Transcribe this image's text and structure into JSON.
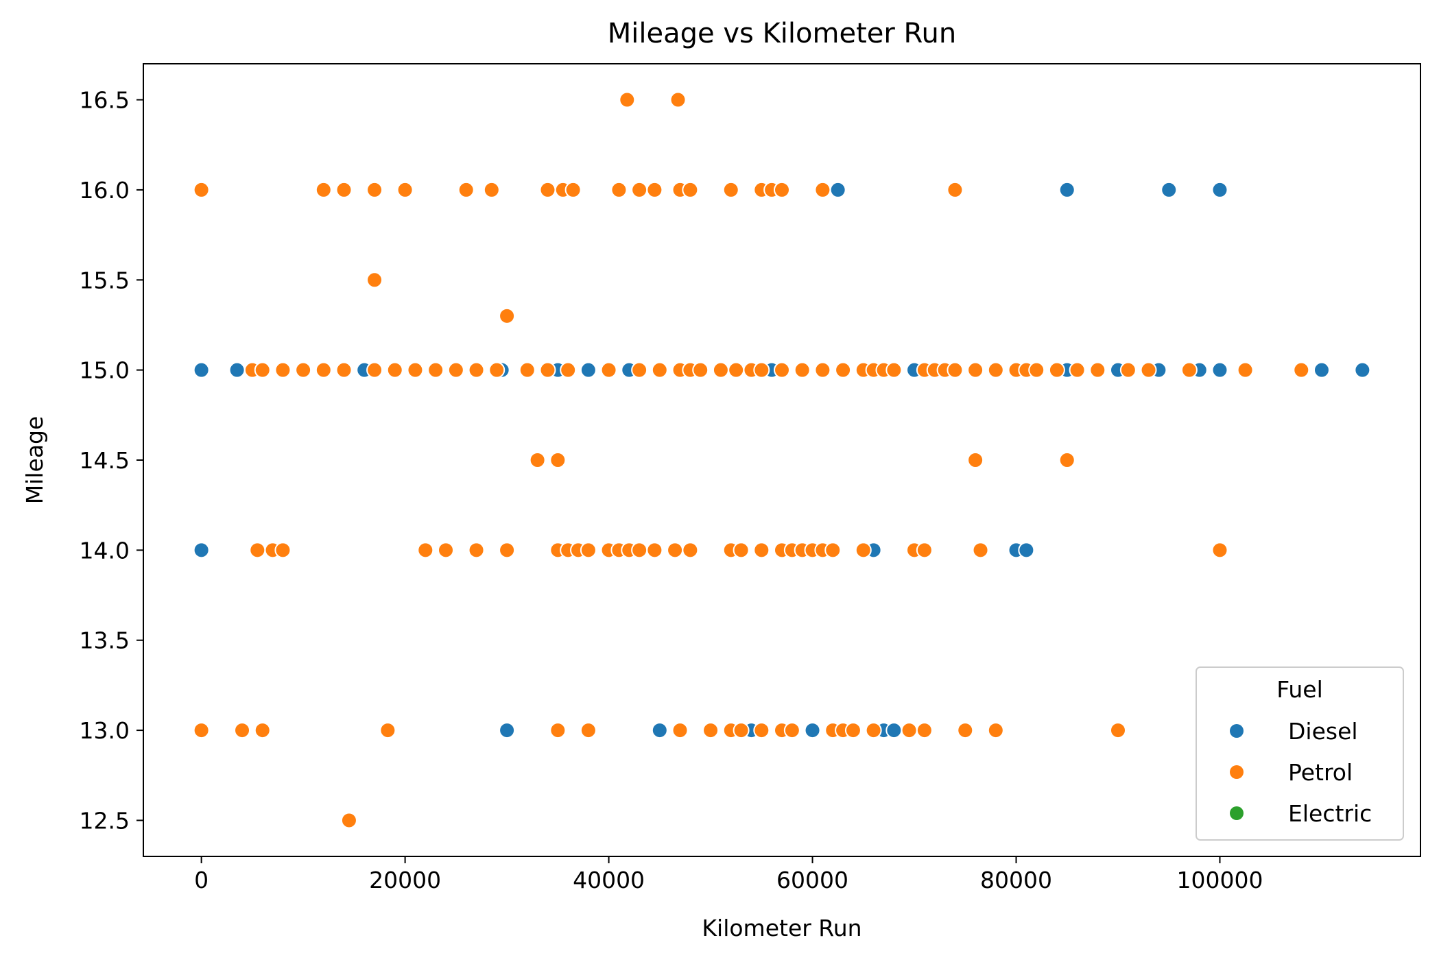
{
  "chart_data": {
    "type": "scatter",
    "title": "Mileage vs Kilometer Run",
    "xlabel": "Kilometer Run",
    "ylabel": "Mileage",
    "xlim": [
      -5700,
      119700
    ],
    "ylim": [
      12.3,
      16.7
    ],
    "x_ticks": [
      0,
      20000,
      40000,
      60000,
      80000,
      100000
    ],
    "y_ticks": [
      12.5,
      13.0,
      13.5,
      14.0,
      14.5,
      15.0,
      15.5,
      16.0,
      16.5
    ],
    "grid": false,
    "legend": {
      "title": "Fuel",
      "placement": "lower right",
      "entries": [
        "Diesel",
        "Petrol",
        "Electric"
      ]
    },
    "series": [
      {
        "name": "Diesel",
        "color": "#1f77b4",
        "points": [
          [
            0,
            15.0
          ],
          [
            3500,
            15.0
          ],
          [
            16000,
            15.0
          ],
          [
            29500,
            15.0
          ],
          [
            35000,
            15.0
          ],
          [
            38000,
            15.0
          ],
          [
            42000,
            15.0
          ],
          [
            56000,
            15.0
          ],
          [
            70000,
            15.0
          ],
          [
            85000,
            15.0
          ],
          [
            90000,
            15.0
          ],
          [
            94000,
            15.0
          ],
          [
            98000,
            15.0
          ],
          [
            100000,
            15.0
          ],
          [
            110000,
            15.0
          ],
          [
            114000,
            15.0
          ],
          [
            62500,
            16.0
          ],
          [
            85000,
            16.0
          ],
          [
            95000,
            16.0
          ],
          [
            100000,
            16.0
          ],
          [
            0,
            14.0
          ],
          [
            66000,
            14.0
          ],
          [
            80000,
            14.0
          ],
          [
            81000,
            14.0
          ],
          [
            30000,
            13.0
          ],
          [
            45000,
            13.0
          ],
          [
            54000,
            13.0
          ],
          [
            60000,
            13.0
          ],
          [
            67000,
            13.0
          ],
          [
            68000,
            13.0
          ]
        ]
      },
      {
        "name": "Petrol",
        "color": "#ff7f0e",
        "points": [
          [
            41800,
            16.5
          ],
          [
            46800,
            16.5
          ],
          [
            0,
            16.0
          ],
          [
            12000,
            16.0
          ],
          [
            14000,
            16.0
          ],
          [
            17000,
            16.0
          ],
          [
            20000,
            16.0
          ],
          [
            26000,
            16.0
          ],
          [
            28500,
            16.0
          ],
          [
            34000,
            16.0
          ],
          [
            35500,
            16.0
          ],
          [
            36500,
            16.0
          ],
          [
            41000,
            16.0
          ],
          [
            43000,
            16.0
          ],
          [
            44500,
            16.0
          ],
          [
            47000,
            16.0
          ],
          [
            48000,
            16.0
          ],
          [
            52000,
            16.0
          ],
          [
            55000,
            16.0
          ],
          [
            56000,
            16.0
          ],
          [
            57000,
            16.0
          ],
          [
            61000,
            16.0
          ],
          [
            74000,
            16.0
          ],
          [
            17000,
            15.5
          ],
          [
            30000,
            15.3
          ],
          [
            5000,
            15.0
          ],
          [
            6000,
            15.0
          ],
          [
            8000,
            15.0
          ],
          [
            10000,
            15.0
          ],
          [
            12000,
            15.0
          ],
          [
            14000,
            15.0
          ],
          [
            17000,
            15.0
          ],
          [
            19000,
            15.0
          ],
          [
            21000,
            15.0
          ],
          [
            23000,
            15.0
          ],
          [
            25000,
            15.0
          ],
          [
            27000,
            15.0
          ],
          [
            29000,
            15.0
          ],
          [
            32000,
            15.0
          ],
          [
            34000,
            15.0
          ],
          [
            36000,
            15.0
          ],
          [
            40000,
            15.0
          ],
          [
            43000,
            15.0
          ],
          [
            45000,
            15.0
          ],
          [
            47000,
            15.0
          ],
          [
            48000,
            15.0
          ],
          [
            49000,
            15.0
          ],
          [
            51000,
            15.0
          ],
          [
            52500,
            15.0
          ],
          [
            54000,
            15.0
          ],
          [
            55000,
            15.0
          ],
          [
            57000,
            15.0
          ],
          [
            59000,
            15.0
          ],
          [
            61000,
            15.0
          ],
          [
            63000,
            15.0
          ],
          [
            65000,
            15.0
          ],
          [
            66000,
            15.0
          ],
          [
            67000,
            15.0
          ],
          [
            68000,
            15.0
          ],
          [
            71000,
            15.0
          ],
          [
            72000,
            15.0
          ],
          [
            73000,
            15.0
          ],
          [
            74000,
            15.0
          ],
          [
            76000,
            15.0
          ],
          [
            78000,
            15.0
          ],
          [
            80000,
            15.0
          ],
          [
            81000,
            15.0
          ],
          [
            82000,
            15.0
          ],
          [
            84000,
            15.0
          ],
          [
            86000,
            15.0
          ],
          [
            88000,
            15.0
          ],
          [
            91000,
            15.0
          ],
          [
            93000,
            15.0
          ],
          [
            97000,
            15.0
          ],
          [
            102500,
            15.0
          ],
          [
            108000,
            15.0
          ],
          [
            33000,
            14.5
          ],
          [
            35000,
            14.5
          ],
          [
            76000,
            14.5
          ],
          [
            85000,
            14.5
          ],
          [
            5500,
            14.0
          ],
          [
            7000,
            14.0
          ],
          [
            8000,
            14.0
          ],
          [
            22000,
            14.0
          ],
          [
            24000,
            14.0
          ],
          [
            27000,
            14.0
          ],
          [
            30000,
            14.0
          ],
          [
            35000,
            14.0
          ],
          [
            36000,
            14.0
          ],
          [
            37000,
            14.0
          ],
          [
            38000,
            14.0
          ],
          [
            40000,
            14.0
          ],
          [
            41000,
            14.0
          ],
          [
            42000,
            14.0
          ],
          [
            43000,
            14.0
          ],
          [
            44500,
            14.0
          ],
          [
            46500,
            14.0
          ],
          [
            48000,
            14.0
          ],
          [
            52000,
            14.0
          ],
          [
            53000,
            14.0
          ],
          [
            55000,
            14.0
          ],
          [
            57000,
            14.0
          ],
          [
            58000,
            14.0
          ],
          [
            59000,
            14.0
          ],
          [
            60000,
            14.0
          ],
          [
            61000,
            14.0
          ],
          [
            62000,
            14.0
          ],
          [
            65000,
            14.0
          ],
          [
            70000,
            14.0
          ],
          [
            71000,
            14.0
          ],
          [
            76500,
            14.0
          ],
          [
            100000,
            14.0
          ],
          [
            0,
            13.0
          ],
          [
            4000,
            13.0
          ],
          [
            6000,
            13.0
          ],
          [
            18300,
            13.0
          ],
          [
            35000,
            13.0
          ],
          [
            38000,
            13.0
          ],
          [
            47000,
            13.0
          ],
          [
            50000,
            13.0
          ],
          [
            52000,
            13.0
          ],
          [
            53000,
            13.0
          ],
          [
            55000,
            13.0
          ],
          [
            57000,
            13.0
          ],
          [
            58000,
            13.0
          ],
          [
            62000,
            13.0
          ],
          [
            63000,
            13.0
          ],
          [
            64000,
            13.0
          ],
          [
            66000,
            13.0
          ],
          [
            69500,
            13.0
          ],
          [
            71000,
            13.0
          ],
          [
            75000,
            13.0
          ],
          [
            78000,
            13.0
          ],
          [
            90000,
            13.0
          ],
          [
            14500,
            12.5
          ]
        ]
      },
      {
        "name": "Electric",
        "color": "#2ca02c",
        "points": []
      }
    ]
  }
}
